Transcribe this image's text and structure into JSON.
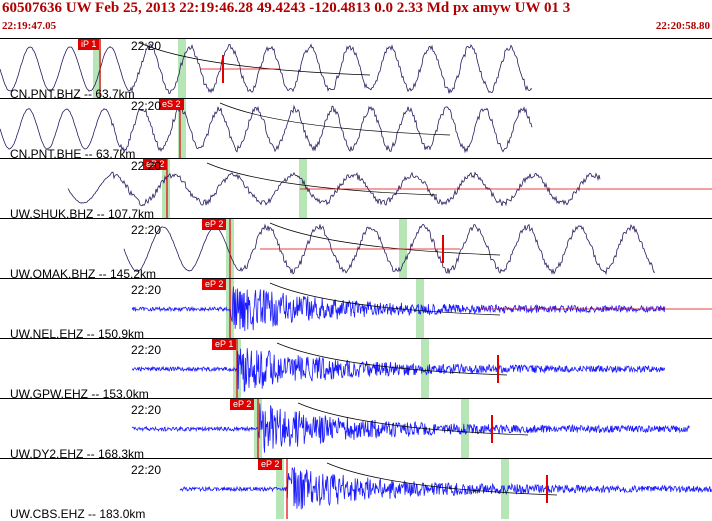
{
  "header": {
    "title": "60507636 UW Feb 25, 2013 22:19:46.28    49.4243 -120.4813  0.0 2.33 Md px amyw UW 01   3",
    "start_time": "22:19:47.05",
    "end_time": "22:20:58.80"
  },
  "colors": {
    "header_text": "#b00000",
    "pick": "#e00000",
    "trace_dark": "#2a1a5e",
    "trace_blue": "#1a1aff",
    "window_green": "#b6e6b6"
  },
  "panels": [
    {
      "station_label": "CN.PNT.BHZ -- 63.7km",
      "time_label": "22:20",
      "pick_label": "iP 1",
      "trace": "dark"
    },
    {
      "station_label": "CN.PNT.BHE -- 63.7km",
      "time_label": "22:20",
      "pick_label": "eS 2",
      "trace": "dark"
    },
    {
      "station_label": "UW.SHUK.BHZ -- 107.7km",
      "time_label": "22:20",
      "pick_label": "eP 2",
      "trace": "dark"
    },
    {
      "station_label": "UW.OMAK.BHZ -- 145.2km",
      "time_label": "22:20",
      "pick_label": "eP 2",
      "trace": "dark"
    },
    {
      "station_label": "UW.NEL.EHZ -- 150.9km",
      "time_label": "22:20",
      "pick_label": "eP 2",
      "trace": "blue"
    },
    {
      "station_label": "UW.GPW.EHZ -- 153.0km",
      "time_label": "22:20",
      "pick_label": "eP 1",
      "trace": "blue"
    },
    {
      "station_label": "UW.DY2.EHZ -- 168.3km",
      "time_label": "22:20",
      "pick_label": "eP 2",
      "trace": "blue"
    },
    {
      "station_label": "UW.CBS.EHZ -- 183.0km",
      "time_label": "22:20",
      "pick_label": "eP 2",
      "trace": "blue"
    }
  ]
}
